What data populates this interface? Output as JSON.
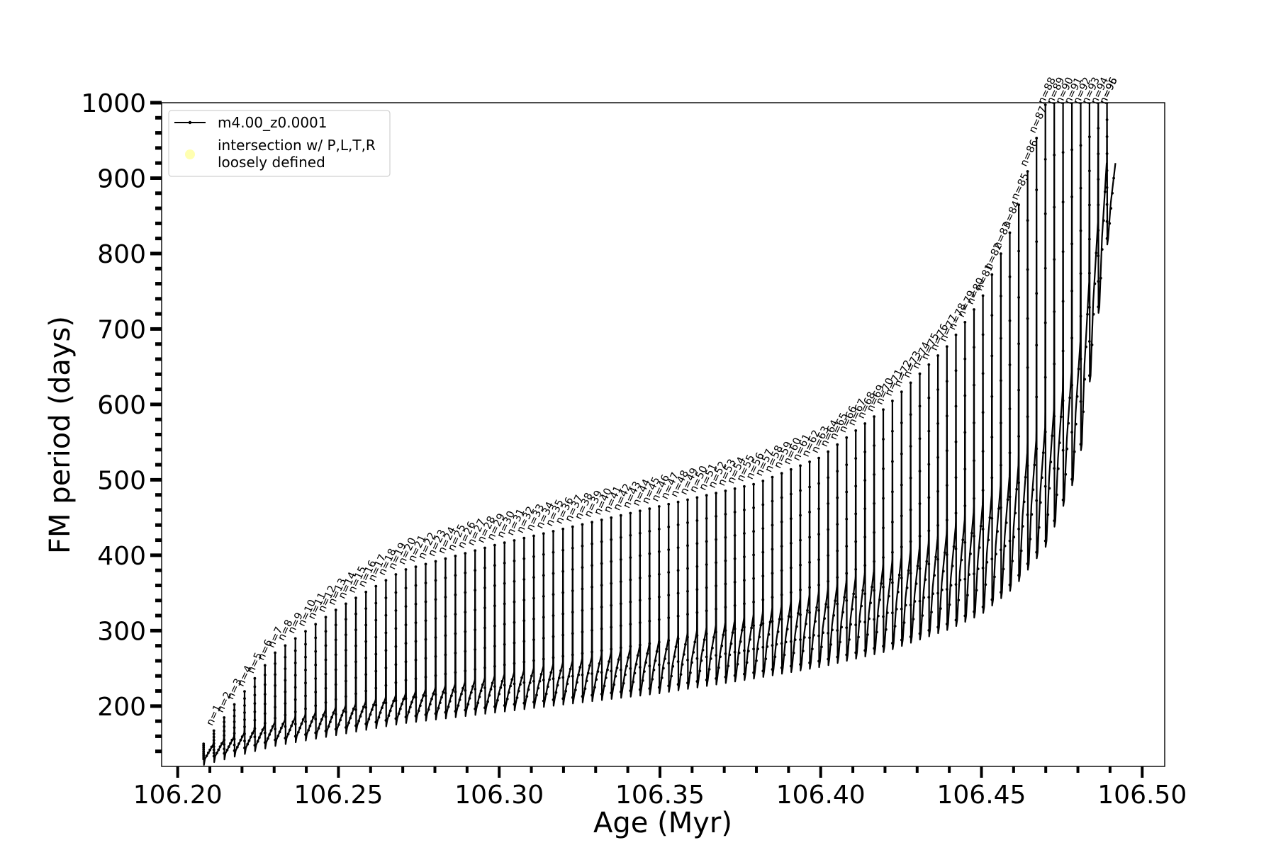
{
  "chart_data": {
    "type": "line",
    "title": "",
    "xlabel": "Age (Myr)",
    "ylabel": "FM period (days)",
    "xlim": [
      106.195,
      106.507
    ],
    "ylim": [
      120,
      1000
    ],
    "xticks": {
      "major": [
        106.2,
        106.25,
        106.3,
        106.35,
        106.4,
        106.45,
        106.5
      ],
      "labels": [
        "106.20",
        "106.25",
        "106.30",
        "106.35",
        "106.40",
        "106.45",
        "106.50"
      ],
      "minor_step": 0.01
    },
    "yticks": {
      "major": [
        200,
        300,
        400,
        500,
        600,
        700,
        800,
        900,
        1000
      ],
      "labels": [
        "200",
        "300",
        "400",
        "500",
        "600",
        "700",
        "800",
        "900",
        "1000"
      ],
      "minor_step": 20
    },
    "grid": false,
    "legend_position": "top-left",
    "series": [
      {
        "name": "m4.00_z0.0001",
        "color": "#000000",
        "marker": "dot",
        "line": "solid",
        "description_points": "thermal pulse cycles; peak periods per pulse n"
      },
      {
        "name": "intersection w/ P,L,T,R loosely defined",
        "color": "#ffffb0",
        "marker": "circle"
      }
    ],
    "pulse_envelope": {
      "first_pulse_age": 106.208,
      "last_pulse_age": 106.489,
      "num_pulses": 96,
      "peak_curve_ages": [
        106.208,
        106.23,
        106.25,
        106.27,
        106.3,
        106.33,
        106.35,
        106.38,
        106.4,
        106.42,
        106.44,
        106.45,
        106.46,
        106.47,
        106.48,
        106.489
      ],
      "peak_curve_values": [
        150,
        270,
        330,
        380,
        415,
        445,
        465,
        495,
        530,
        595,
        680,
        740,
        840,
        1000,
        1000,
        1000
      ],
      "base_curve_ages": [
        106.208,
        106.23,
        106.25,
        106.27,
        106.3,
        106.33,
        106.35,
        106.38,
        106.4,
        106.42,
        106.44,
        106.45,
        106.46,
        106.47,
        106.48,
        106.489
      ],
      "base_curve_values": [
        130,
        155,
        170,
        185,
        200,
        215,
        225,
        245,
        260,
        280,
        310,
        330,
        365,
        420,
        520,
        820
      ],
      "trail_curve_ages": [
        106.208,
        106.23,
        106.25,
        106.27,
        106.3,
        106.33,
        106.35,
        106.38,
        106.4,
        106.42,
        106.44,
        106.45,
        106.46,
        106.47,
        106.48,
        106.489
      ],
      "trail_curve_values": [
        145,
        178,
        198,
        215,
        240,
        265,
        285,
        320,
        350,
        385,
        430,
        465,
        510,
        570,
        660,
        920
      ]
    },
    "pulse_labels": [
      "n=1",
      "n=2",
      "n=3",
      "n=4",
      "n=5",
      "n=6",
      "n=7",
      "n=8",
      "n=9",
      "n=10",
      "n=11",
      "n=12",
      "n=13",
      "n=14",
      "n=15",
      "n=16",
      "n=17",
      "n=18",
      "n=19",
      "n=20",
      "n=21",
      "n=22",
      "n=23",
      "n=24",
      "n=25",
      "n=26",
      "n=27",
      "n=28",
      "n=29",
      "n=30",
      "n=31",
      "n=32",
      "n=33",
      "n=34",
      "n=35",
      "n=36",
      "n=37",
      "n=38",
      "n=39",
      "n=40",
      "n=41",
      "n=42",
      "n=43",
      "n=44",
      "n=45",
      "n=46",
      "n=47",
      "n=48",
      "n=49",
      "n=50",
      "n=51",
      "n=52",
      "n=53",
      "n=54",
      "n=55",
      "n=56",
      "n=57",
      "n=58",
      "n=59",
      "n=60",
      "n=61",
      "n=62",
      "n=63",
      "n=64",
      "n=65",
      "n=66",
      "n=67",
      "n=68",
      "n=69",
      "n=70",
      "n=71",
      "n=72",
      "n=73",
      "n=74",
      "n=75",
      "n=76",
      "n=77",
      "n=78",
      "n=79",
      "n=80",
      "n=81",
      "n=82",
      "n=83",
      "n=84",
      "n=85",
      "n=86",
      "n=87",
      "n=88",
      "n=89",
      "n=90",
      "n=91",
      "n=92",
      "n=93",
      "n=94",
      "n=95",
      "n=96"
    ]
  }
}
